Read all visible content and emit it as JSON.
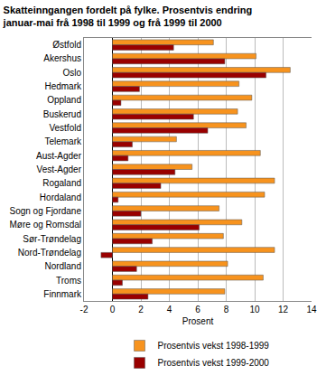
{
  "chart_data": {
    "type": "bar",
    "orientation": "horizontal",
    "title": "Skatteinngangen fordelt på fylke. Prosentvis endring\njanuar-mai frå 1998 til 1999 og frå 1999 til 2000",
    "x_label": "Prosent",
    "categories": [
      "Østfold",
      "Akershus",
      "Oslo",
      "Hedmark",
      "Oppland",
      "Buskerud",
      "Vestfold",
      "Telemark",
      "Aust-Agder",
      "Vest-Agder",
      "Rogaland",
      "Hordaland",
      "Sogn og Fjordane",
      "Møre og Romsdal",
      "Sør-Trøndelag",
      "Nord-Trøndelag",
      "Nordland",
      "Troms",
      "Finnmark"
    ],
    "series": [
      {
        "name": "Prosentvis vekst 1998-1999",
        "color": "#f7931e",
        "values": [
          7.1,
          10.1,
          12.5,
          8.9,
          9.8,
          8.8,
          9.4,
          4.5,
          10.4,
          5.6,
          11.4,
          10.7,
          7.5,
          9.1,
          7.8,
          11.4,
          8.1,
          10.6,
          7.9
        ]
      },
      {
        "name": "Prosentvis vekst 1999-2000",
        "color": "#990000",
        "values": [
          4.3,
          7.9,
          10.8,
          1.9,
          0.6,
          5.7,
          6.7,
          1.4,
          1.1,
          4.4,
          3.4,
          0.4,
          2.0,
          6.1,
          2.8,
          -0.8,
          1.7,
          0.7,
          2.5
        ]
      }
    ],
    "xlim": [
      -2,
      14
    ],
    "xticks": [
      -2,
      0,
      2,
      4,
      6,
      8,
      10,
      12,
      14
    ],
    "grid": true,
    "legend": "bottom"
  }
}
